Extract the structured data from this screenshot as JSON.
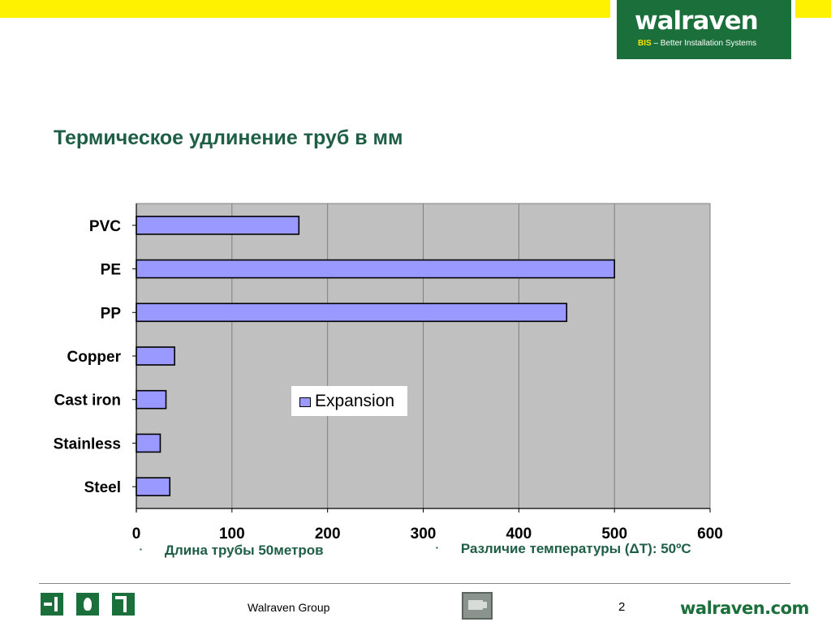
{
  "header": {
    "logo_word": "walraven",
    "logo_tag_bold": "BIS",
    "logo_tag_rest": " – Better Installation Systems",
    "title": "Термическое удлинение труб в мм"
  },
  "chart_data": {
    "type": "bar",
    "orientation": "horizontal",
    "title": "",
    "categories": [
      "PVC",
      "PE",
      "PP",
      "Copper",
      "Cast iron",
      "Stainless",
      "Steel"
    ],
    "series": [
      {
        "name": "Expansion",
        "values": [
          170,
          500,
          450,
          40,
          31,
          25,
          35
        ],
        "color": "#9999ff"
      }
    ],
    "xlim": [
      0,
      600
    ],
    "xticks": [
      "0",
      "100",
      "200",
      "300",
      "400",
      "500",
      "600"
    ],
    "grid": true,
    "legend": "center",
    "plot_background": "#c0c0c0"
  },
  "notes": {
    "bullet_mark": "▪",
    "left": "Длина трубы 50метров",
    "right": "Различие температуры (ΔT): 50ºC"
  },
  "footer": {
    "company": "Walraven Group",
    "page_number": "2",
    "url": "walraven.com"
  },
  "colors": {
    "yellow": "#fff200",
    "brand_green": "#1a6f3a",
    "title_green": "#1f5e46"
  },
  "icons": [
    "entry-icon",
    "flame-icon",
    "pipe-icon",
    "film-icon"
  ]
}
